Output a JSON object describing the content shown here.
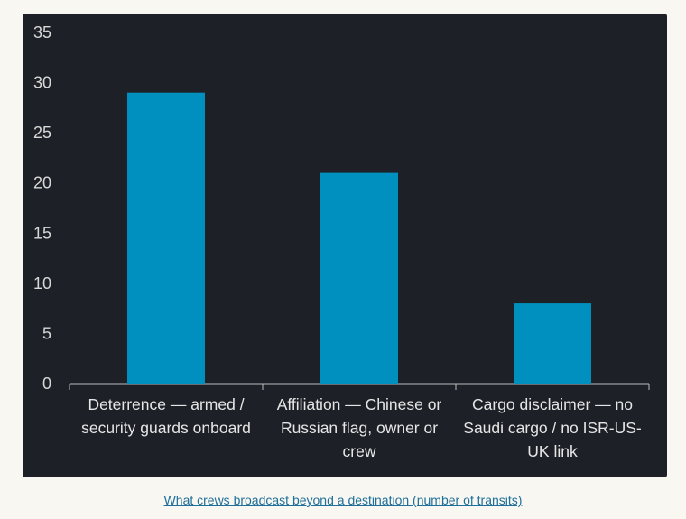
{
  "caption": "What crews broadcast beyond a destination (number of transits)",
  "chart_data": {
    "type": "bar",
    "categories": [
      "Deterrence — armed / security guards onboard",
      "Affiliation — Chinese or Russian flag, owner or crew",
      "Cargo disclaimer — no Saudi cargo / no ISR-US-UK link"
    ],
    "values": [
      29,
      21,
      8
    ],
    "title": "",
    "xlabel": "",
    "ylabel": "",
    "ylim": [
      0,
      35
    ],
    "yticks": [
      0,
      5,
      10,
      15,
      20,
      25,
      30,
      35
    ],
    "grid": false,
    "bar_color": "#0090c0"
  }
}
